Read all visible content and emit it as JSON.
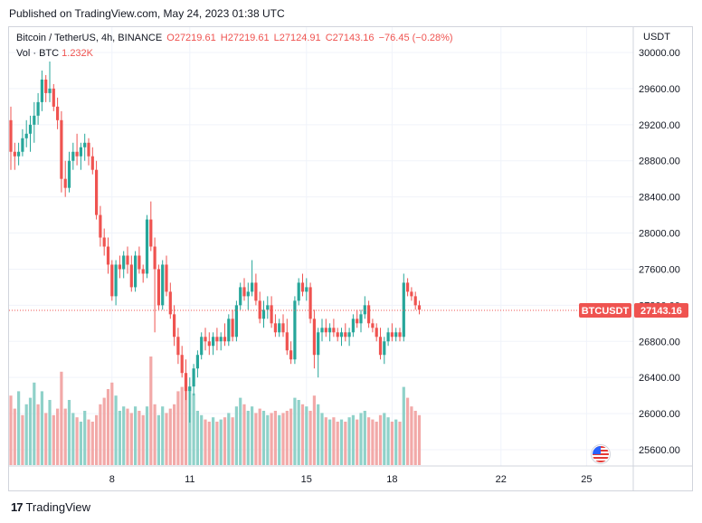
{
  "published": "Published on TradingView.com, May 24, 2023 01:38 UTC",
  "legend": {
    "symbol": "Bitcoin / TetherUS, 4h, BINANCE",
    "open": "O27219.61",
    "high": "H27219.61",
    "low": "L27124.91",
    "close": "C27143.16",
    "change": "−76.45 (−0.28%)",
    "vol_label": "Vol · BTC",
    "vol_value": "1.232K"
  },
  "currency": "USDT",
  "last_price": {
    "ticker": "BTCUSDT",
    "value": "27143.16"
  },
  "footer": {
    "logo_text": "17",
    "brand": "TradingView"
  },
  "colors": {
    "up": "#26a69a",
    "down": "#ef5350",
    "up_vol": "#8fd1c9",
    "down_vol": "#f2a9a8",
    "grid": "#f0f3fa"
  },
  "chart_data": {
    "type": "candlestick",
    "title": "Bitcoin / TetherUS, 4h, BINANCE",
    "ylabel": "USDT",
    "ylim": [
      25400,
      30000
    ],
    "y_ticks": [
      "30000.00",
      "29600.00",
      "29200.00",
      "28800.00",
      "28400.00",
      "28000.00",
      "27600.00",
      "27200.00",
      "26800.00",
      "26400.00",
      "26000.00",
      "25600.00"
    ],
    "x_ticks": [
      {
        "label": "8",
        "index": 26
      },
      {
        "label": "11",
        "index": 46
      },
      {
        "label": "15",
        "index": 76
      },
      {
        "label": "18",
        "index": 98
      },
      {
        "label": "22",
        "index": 126
      },
      {
        "label": "25",
        "index": 148
      }
    ],
    "grid": true,
    "candles": [
      [
        29250,
        29400,
        28700,
        28900
      ],
      [
        28900,
        29000,
        28700,
        28850
      ],
      [
        28850,
        29000,
        28750,
        28900
      ],
      [
        28900,
        29150,
        28850,
        29050
      ],
      [
        29050,
        29250,
        28950,
        29100
      ],
      [
        29100,
        29300,
        28900,
        29200
      ],
      [
        29200,
        29450,
        29000,
        29300
      ],
      [
        29300,
        29550,
        29200,
        29450
      ],
      [
        29450,
        29800,
        29350,
        29700
      ],
      [
        29700,
        29750,
        29450,
        29550
      ],
      [
        29550,
        29900,
        29450,
        29600
      ],
      [
        29600,
        29650,
        29350,
        29400
      ],
      [
        29400,
        29500,
        29150,
        29250
      ],
      [
        29250,
        29350,
        28450,
        28600
      ],
      [
        28600,
        28800,
        28400,
        28500
      ],
      [
        28500,
        28900,
        28450,
        28800
      ],
      [
        28800,
        29000,
        28700,
        28900
      ],
      [
        28900,
        29100,
        28750,
        28850
      ],
      [
        28850,
        29000,
        28700,
        28950
      ],
      [
        28950,
        29100,
        28800,
        29000
      ],
      [
        29000,
        29050,
        28750,
        28850
      ],
      [
        28850,
        28950,
        28650,
        28700
      ],
      [
        28700,
        28800,
        28150,
        28200
      ],
      [
        28200,
        28300,
        27850,
        27950
      ],
      [
        27950,
        28050,
        27750,
        27850
      ],
      [
        27850,
        27950,
        27550,
        27650
      ],
      [
        27650,
        27700,
        27250,
        27300
      ],
      [
        27300,
        27700,
        27200,
        27650
      ],
      [
        27650,
        27750,
        27500,
        27600
      ],
      [
        27600,
        27800,
        27500,
        27750
      ],
      [
        27750,
        27850,
        27550,
        27650
      ],
      [
        27650,
        27750,
        27350,
        27400
      ],
      [
        27400,
        27800,
        27350,
        27750
      ],
      [
        27750,
        27850,
        27550,
        27600
      ],
      [
        27600,
        27650,
        27450,
        27550
      ],
      [
        27550,
        28200,
        27500,
        28150
      ],
      [
        28150,
        28350,
        27800,
        27850
      ],
      [
        27850,
        27950,
        26900,
        27600
      ],
      [
        27600,
        27650,
        27150,
        27200
      ],
      [
        27200,
        27700,
        27150,
        27650
      ],
      [
        27650,
        27750,
        27300,
        27350
      ],
      [
        27350,
        27450,
        27050,
        27100
      ],
      [
        27100,
        27200,
        26750,
        26850
      ],
      [
        26850,
        26950,
        26550,
        26650
      ],
      [
        26650,
        26750,
        26400,
        26450
      ],
      [
        26450,
        26600,
        26150,
        26250
      ],
      [
        26250,
        26400,
        25900,
        26300
      ],
      [
        26300,
        26550,
        26200,
        26500
      ],
      [
        26500,
        26700,
        26400,
        26650
      ],
      [
        26650,
        26900,
        26600,
        26850
      ],
      [
        26850,
        26950,
        26700,
        26800
      ],
      [
        26800,
        26900,
        26650,
        26750
      ],
      [
        26750,
        26900,
        26650,
        26850
      ],
      [
        26850,
        26950,
        26700,
        26800
      ],
      [
        26800,
        26900,
        26700,
        26850
      ],
      [
        26850,
        27000,
        26750,
        26800
      ],
      [
        26800,
        27100,
        26750,
        27050
      ],
      [
        27050,
        27150,
        26800,
        26850
      ],
      [
        26850,
        27250,
        26800,
        27200
      ],
      [
        27200,
        27450,
        27150,
        27400
      ],
      [
        27400,
        27500,
        27250,
        27300
      ],
      [
        27300,
        27450,
        27150,
        27350
      ],
      [
        27350,
        27700,
        27300,
        27450
      ],
      [
        27450,
        27550,
        27200,
        27250
      ],
      [
        27250,
        27350,
        27000,
        27050
      ],
      [
        27050,
        27250,
        26950,
        27150
      ],
      [
        27150,
        27300,
        27050,
        27200
      ],
      [
        27200,
        27300,
        26950,
        27000
      ],
      [
        27000,
        27100,
        26850,
        26900
      ],
      [
        26900,
        27050,
        26850,
        27000
      ],
      [
        27000,
        27100,
        26850,
        26900
      ],
      [
        26900,
        27050,
        26650,
        26700
      ],
      [
        26700,
        26800,
        26550,
        26600
      ],
      [
        26600,
        27300,
        26550,
        27250
      ],
      [
        27250,
        27500,
        27200,
        27450
      ],
      [
        27450,
        27550,
        27300,
        27350
      ],
      [
        27350,
        27500,
        27250,
        27400
      ],
      [
        27400,
        27450,
        27000,
        27050
      ],
      [
        27050,
        27150,
        26500,
        26650
      ],
      [
        26650,
        26950,
        26400,
        26900
      ],
      [
        26900,
        27050,
        26800,
        26950
      ],
      [
        26950,
        27050,
        26850,
        26900
      ],
      [
        26900,
        27000,
        26800,
        26950
      ],
      [
        26950,
        27050,
        26850,
        26900
      ],
      [
        26900,
        26950,
        26800,
        26850
      ],
      [
        26850,
        26950,
        26750,
        26900
      ],
      [
        26900,
        27000,
        26800,
        26850
      ],
      [
        26850,
        26950,
        26750,
        26900
      ],
      [
        26900,
        27100,
        26850,
        27050
      ],
      [
        27050,
        27150,
        26950,
        27000
      ],
      [
        27000,
        27150,
        26900,
        27100
      ],
      [
        27100,
        27300,
        27050,
        27200
      ],
      [
        27200,
        27250,
        26950,
        27000
      ],
      [
        27000,
        27050,
        26900,
        26950
      ],
      [
        26950,
        27000,
        26800,
        26850
      ],
      [
        26850,
        26950,
        26600,
        26650
      ],
      [
        26650,
        26850,
        26550,
        26800
      ],
      [
        26800,
        26950,
        26750,
        26900
      ],
      [
        26900,
        27000,
        26800,
        26850
      ],
      [
        26850,
        26950,
        26800,
        26900
      ],
      [
        26900,
        26950,
        26800,
        26850
      ],
      [
        26850,
        27550,
        26800,
        27450
      ],
      [
        27450,
        27500,
        27300,
        27350
      ],
      [
        27350,
        27400,
        27250,
        27300
      ],
      [
        27300,
        27350,
        27150,
        27200
      ],
      [
        27200,
        27250,
        27100,
        27150
      ]
    ],
    "volumes": [
      [
        640,
        0
      ],
      [
        520,
        0
      ],
      [
        680,
        1
      ],
      [
        460,
        0
      ],
      [
        560,
        1
      ],
      [
        620,
        1
      ],
      [
        760,
        1
      ],
      [
        560,
        0
      ],
      [
        680,
        1
      ],
      [
        480,
        0
      ],
      [
        600,
        1
      ],
      [
        460,
        0
      ],
      [
        520,
        0
      ],
      [
        860,
        0
      ],
      [
        520,
        0
      ],
      [
        600,
        1
      ],
      [
        480,
        1
      ],
      [
        440,
        0
      ],
      [
        400,
        1
      ],
      [
        500,
        1
      ],
      [
        420,
        0
      ],
      [
        400,
        0
      ],
      [
        460,
        0
      ],
      [
        560,
        0
      ],
      [
        620,
        0
      ],
      [
        700,
        0
      ],
      [
        760,
        0
      ],
      [
        640,
        1
      ],
      [
        500,
        1
      ],
      [
        540,
        1
      ],
      [
        520,
        0
      ],
      [
        480,
        0
      ],
      [
        540,
        1
      ],
      [
        500,
        0
      ],
      [
        460,
        0
      ],
      [
        540,
        1
      ],
      [
        1000,
        0
      ],
      [
        560,
        0
      ],
      [
        460,
        1
      ],
      [
        540,
        1
      ],
      [
        480,
        0
      ],
      [
        520,
        0
      ],
      [
        560,
        0
      ],
      [
        680,
        0
      ],
      [
        720,
        0
      ],
      [
        800,
        0
      ],
      [
        720,
        1
      ],
      [
        660,
        1
      ],
      [
        500,
        1
      ],
      [
        460,
        1
      ],
      [
        420,
        0
      ],
      [
        400,
        0
      ],
      [
        440,
        1
      ],
      [
        400,
        0
      ],
      [
        420,
        1
      ],
      [
        440,
        0
      ],
      [
        480,
        1
      ],
      [
        440,
        0
      ],
      [
        540,
        1
      ],
      [
        620,
        1
      ],
      [
        560,
        0
      ],
      [
        500,
        1
      ],
      [
        540,
        1
      ],
      [
        480,
        0
      ],
      [
        520,
        0
      ],
      [
        500,
        1
      ],
      [
        460,
        1
      ],
      [
        480,
        0
      ],
      [
        500,
        0
      ],
      [
        460,
        1
      ],
      [
        480,
        0
      ],
      [
        500,
        0
      ],
      [
        520,
        0
      ],
      [
        620,
        1
      ],
      [
        600,
        1
      ],
      [
        560,
        0
      ],
      [
        540,
        1
      ],
      [
        500,
        0
      ],
      [
        640,
        0
      ],
      [
        560,
        1
      ],
      [
        480,
        1
      ],
      [
        440,
        0
      ],
      [
        420,
        1
      ],
      [
        440,
        0
      ],
      [
        400,
        0
      ],
      [
        420,
        1
      ],
      [
        400,
        0
      ],
      [
        440,
        1
      ],
      [
        460,
        1
      ],
      [
        420,
        0
      ],
      [
        480,
        1
      ],
      [
        500,
        1
      ],
      [
        440,
        0
      ],
      [
        420,
        0
      ],
      [
        400,
        0
      ],
      [
        460,
        0
      ],
      [
        480,
        1
      ],
      [
        440,
        1
      ],
      [
        400,
        0
      ],
      [
        420,
        1
      ],
      [
        400,
        0
      ],
      [
        720,
        1
      ],
      [
        620,
        0
      ],
      [
        540,
        0
      ],
      [
        500,
        0
      ],
      [
        460,
        0
      ]
    ]
  }
}
